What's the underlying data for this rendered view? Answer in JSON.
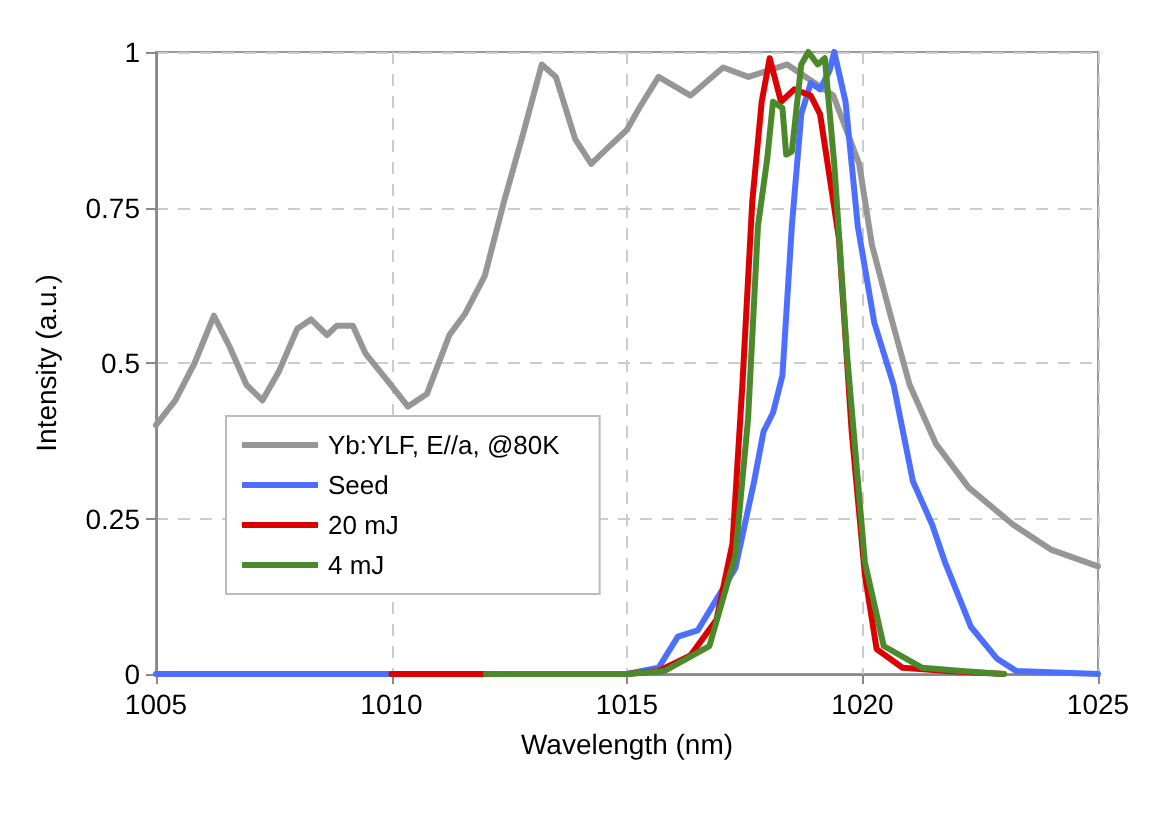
{
  "chart_data": {
    "type": "line",
    "xlabel": "Wavelength (nm)",
    "ylabel": "Intensity (a.u.)",
    "xlim": [
      1005,
      1025
    ],
    "xticks": [
      1005,
      1010,
      1015,
      1020,
      1025
    ],
    "ylim": [
      0,
      1
    ],
    "yticks": [
      0,
      0.25,
      0.5,
      0.75,
      1
    ],
    "grid": true,
    "legend": "bottom left",
    "marker": "none",
    "line_style": "solid",
    "series": [
      {
        "name": "Yb:YLF, E//a, @80K",
        "color": "#969696",
        "x": [
          1005.0,
          1005.41,
          1005.82,
          1006.23,
          1006.57,
          1006.92,
          1007.26,
          1007.6,
          1008.0,
          1008.29,
          1008.63,
          1008.84,
          1009.18,
          1009.45,
          1009.93,
          1010.35,
          1010.75,
          1011.23,
          1011.57,
          1011.98,
          1012.39,
          1012.8,
          1013.19,
          1013.49,
          1013.9,
          1014.24,
          1014.58,
          1015.0,
          1015.26,
          1015.67,
          1016.35,
          1017.04,
          1017.58,
          1018.4,
          1019.38,
          1019.93,
          1020.2,
          1020.6,
          1021.0,
          1021.56,
          1022.25,
          1023.2,
          1024.0,
          1025.0
        ],
        "values": [
          0.4,
          0.44,
          0.5,
          0.576,
          0.525,
          0.465,
          0.44,
          0.485,
          0.555,
          0.57,
          0.545,
          0.56,
          0.56,
          0.515,
          0.47,
          0.43,
          0.45,
          0.545,
          0.58,
          0.64,
          0.76,
          0.87,
          0.98,
          0.96,
          0.86,
          0.82,
          0.845,
          0.875,
          0.91,
          0.96,
          0.93,
          0.975,
          0.96,
          0.98,
          0.93,
          0.82,
          0.69,
          0.575,
          0.465,
          0.37,
          0.3,
          0.24,
          0.2,
          0.173
        ]
      },
      {
        "name": "Seed",
        "color": "#4d6fff",
        "x": [
          1005.0,
          1015.0,
          1015.67,
          1016.08,
          1016.5,
          1016.9,
          1017.3,
          1017.7,
          1017.9,
          1018.1,
          1018.3,
          1018.5,
          1018.7,
          1018.9,
          1019.1,
          1019.3,
          1019.4,
          1019.64,
          1019.9,
          1020.25,
          1020.66,
          1021.07,
          1021.48,
          1021.75,
          1022.3,
          1022.85,
          1023.26,
          1025.0
        ],
        "values": [
          0,
          0,
          0.01,
          0.06,
          0.07,
          0.12,
          0.17,
          0.31,
          0.39,
          0.42,
          0.48,
          0.72,
          0.9,
          0.95,
          0.94,
          0.97,
          1.0,
          0.92,
          0.72,
          0.565,
          0.465,
          0.31,
          0.24,
          0.18,
          0.076,
          0.025,
          0.005,
          0
        ]
      },
      {
        "name": "20 mJ",
        "color": "#dd0000",
        "x": [
          1010.0,
          1015.0,
          1015.67,
          1016.35,
          1016.9,
          1017.24,
          1017.45,
          1017.66,
          1017.86,
          1018.03,
          1018.27,
          1018.55,
          1018.9,
          1019.1,
          1019.5,
          1019.77,
          1020.05,
          1020.3,
          1020.85,
          1021.8,
          1023.0
        ],
        "values": [
          0,
          0,
          0.005,
          0.03,
          0.087,
          0.21,
          0.465,
          0.76,
          0.92,
          0.99,
          0.92,
          0.94,
          0.93,
          0.9,
          0.7,
          0.39,
          0.16,
          0.04,
          0.01,
          0.005,
          0
        ]
      },
      {
        "name": "4 mJ",
        "color": "#4a8a2a",
        "x": [
          1012.0,
          1015.0,
          1015.8,
          1016.75,
          1017.3,
          1017.57,
          1017.78,
          1017.98,
          1018.1,
          1018.3,
          1018.38,
          1018.5,
          1018.7,
          1018.85,
          1019.05,
          1019.2,
          1019.4,
          1019.67,
          1020.05,
          1020.45,
          1021.27,
          1022.1,
          1023.0
        ],
        "values": [
          0,
          0,
          0.005,
          0.045,
          0.19,
          0.41,
          0.72,
          0.83,
          0.92,
          0.91,
          0.835,
          0.84,
          0.98,
          1.0,
          0.98,
          0.99,
          0.82,
          0.515,
          0.18,
          0.045,
          0.01,
          0.005,
          0
        ]
      }
    ]
  }
}
